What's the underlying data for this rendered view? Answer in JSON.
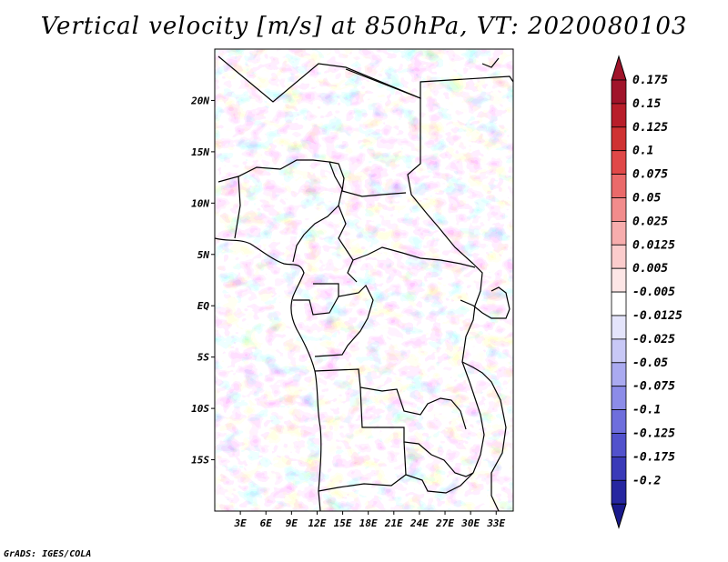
{
  "title": "Vertical velocity [m/s] at 850hPa, VT: 2020080103",
  "credit": "GrADS: IGES/COLA",
  "map": {
    "lon_range": [
      0,
      35
    ],
    "lat_range": [
      -20,
      25
    ],
    "lon_ticks": [
      {
        "value": 3,
        "label": "3E"
      },
      {
        "value": 6,
        "label": "6E"
      },
      {
        "value": 9,
        "label": "9E"
      },
      {
        "value": 12,
        "label": "12E"
      },
      {
        "value": 15,
        "label": "15E"
      },
      {
        "value": 18,
        "label": "18E"
      },
      {
        "value": 21,
        "label": "21E"
      },
      {
        "value": 24,
        "label": "24E"
      },
      {
        "value": 27,
        "label": "27E"
      },
      {
        "value": 30,
        "label": "30E"
      },
      {
        "value": 33,
        "label": "33E"
      }
    ],
    "lat_ticks": [
      {
        "value": 20,
        "label": "20N"
      },
      {
        "value": 15,
        "label": "15N"
      },
      {
        "value": 10,
        "label": "10N"
      },
      {
        "value": 5,
        "label": "5N"
      },
      {
        "value": 0,
        "label": "EQ"
      },
      {
        "value": -5,
        "label": "5S"
      },
      {
        "value": -10,
        "label": "10S"
      },
      {
        "value": -15,
        "label": "15S"
      }
    ]
  },
  "colorbar": {
    "levels": [
      {
        "label": "0.175",
        "color": "#a0142a"
      },
      {
        "label": "0.15",
        "color": "#b81e2a"
      },
      {
        "label": "0.125",
        "color": "#cf3232"
      },
      {
        "label": "0.1",
        "color": "#e04848"
      },
      {
        "label": "0.075",
        "color": "#ea6a6a"
      },
      {
        "label": "0.05",
        "color": "#f28c8c"
      },
      {
        "label": "0.025",
        "color": "#f7adad"
      },
      {
        "label": "0.0125",
        "color": "#fbcccc"
      },
      {
        "label": "0.005",
        "color": "#fde6e6"
      },
      {
        "label": "-0.005",
        "color": "#ffffff"
      },
      {
        "label": "-0.0125",
        "color": "#e4e4fb"
      },
      {
        "label": "-0.025",
        "color": "#c8c8f6"
      },
      {
        "label": "-0.05",
        "color": "#aaaaf0"
      },
      {
        "label": "-0.075",
        "color": "#8c8ce8"
      },
      {
        "label": "-0.1",
        "color": "#6e6edc"
      },
      {
        "label": "-0.125",
        "color": "#5252cc"
      },
      {
        "label": "-0.175",
        "color": "#3a3ab8"
      },
      {
        "label": "-0.2",
        "color": "#2626a0"
      }
    ],
    "bottom_tip_color": "#1a1a8c"
  }
}
